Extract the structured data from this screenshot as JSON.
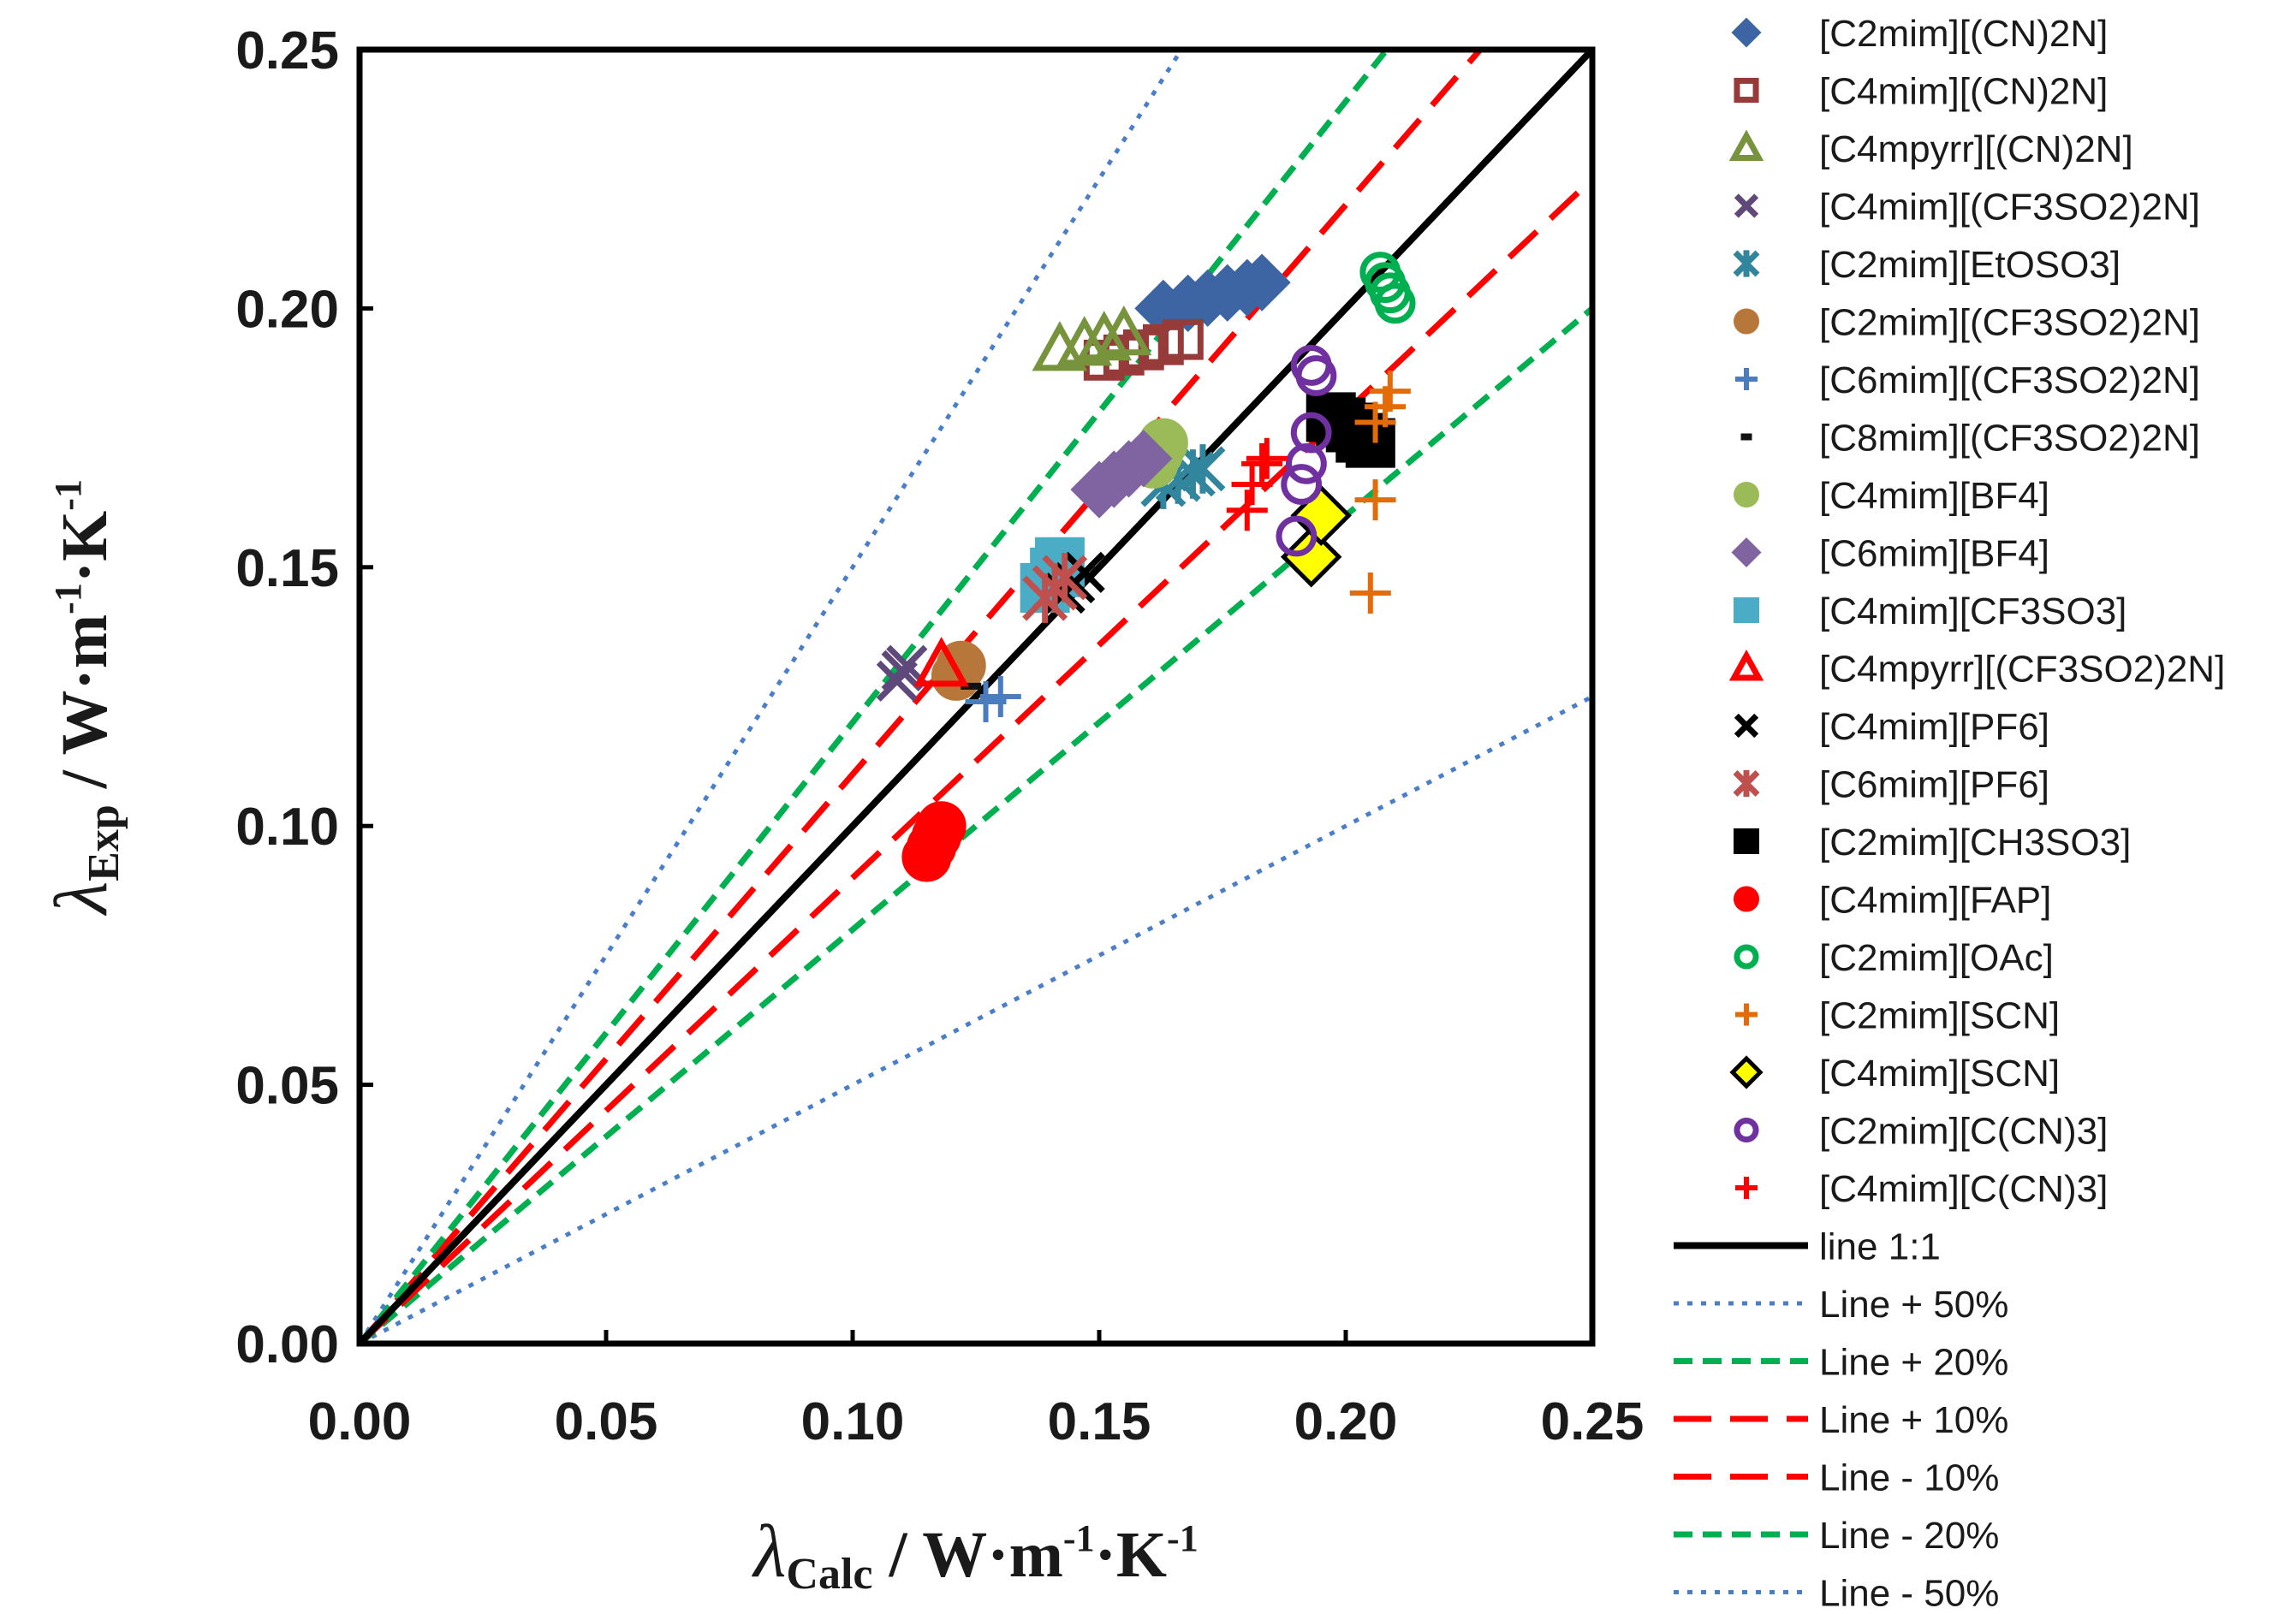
{
  "chart_data": {
    "type": "scatter",
    "title": "",
    "xlabel": {
      "symbol": "λ",
      "sub": "Calc",
      "unit": " / W·m",
      "exp1": "-1",
      "mid": "·K",
      "exp2": "-1"
    },
    "ylabel": {
      "symbol": "λ",
      "sub": "Exp",
      "unit": " / W·m",
      "exp1": "-1",
      "mid": "·K",
      "exp2": "-1"
    },
    "xlim": [
      0,
      0.25
    ],
    "ylim": [
      0,
      0.25
    ],
    "xticks": [
      "0.00",
      "0.05",
      "0.10",
      "0.15",
      "0.20",
      "0.25"
    ],
    "yticks": [
      "0.00",
      "0.05",
      "0.10",
      "0.15",
      "0.20",
      "0.25"
    ],
    "legend_position": "right",
    "series": [
      {
        "name": "[C2mim][(CN)2N]",
        "marker": "diamond",
        "fill": true,
        "color": "#3d64a3",
        "points": [
          [
            0.163,
            0.2
          ],
          [
            0.168,
            0.201
          ],
          [
            0.172,
            0.202
          ],
          [
            0.176,
            0.203
          ],
          [
            0.18,
            0.204
          ],
          [
            0.183,
            0.205
          ]
        ]
      },
      {
        "name": "[C4mim][(CN)2N]",
        "marker": "square",
        "fill": false,
        "color": "#973a3a",
        "points": [
          [
            0.151,
            0.19
          ],
          [
            0.155,
            0.191
          ],
          [
            0.159,
            0.192
          ],
          [
            0.163,
            0.193
          ],
          [
            0.167,
            0.194
          ]
        ]
      },
      {
        "name": "[C4mpyrr][(CN)2N]",
        "marker": "triangle",
        "fill": false,
        "color": "#77933c",
        "points": [
          [
            0.142,
            0.192
          ],
          [
            0.147,
            0.193
          ],
          [
            0.151,
            0.194
          ],
          [
            0.155,
            0.195
          ]
        ]
      },
      {
        "name": "[C4mim][(CF3SO2)2N]",
        "marker": "x",
        "fill": false,
        "color": "#5f497a",
        "points": [
          [
            0.109,
            0.128
          ],
          [
            0.11,
            0.13
          ],
          [
            0.111,
            0.131
          ]
        ]
      },
      {
        "name": "[C2mim][EtOSO3]",
        "marker": "star",
        "fill": false,
        "color": "#31859c",
        "points": [
          [
            0.163,
            0.166
          ],
          [
            0.166,
            0.167
          ],
          [
            0.169,
            0.168
          ],
          [
            0.171,
            0.169
          ]
        ]
      },
      {
        "name": "[C2mim][(CF3SO2)2N]",
        "marker": "circle",
        "fill": true,
        "color": "#b7763a",
        "points": [
          [
            0.121,
            0.129
          ],
          [
            0.122,
            0.131
          ]
        ]
      },
      {
        "name": "[C6mim][(CF3SO2)2N]",
        "marker": "plus",
        "fill": false,
        "color": "#4a7cc0",
        "points": [
          [
            0.127,
            0.124
          ],
          [
            0.13,
            0.125
          ]
        ]
      },
      {
        "name": "[C8mim][(CF3SO2)2N]",
        "marker": "dash",
        "fill": false,
        "color": "#111111",
        "points": [
          [
            0.124,
            0.127
          ]
        ]
      },
      {
        "name": "[C4mim][BF4]",
        "marker": "circle",
        "fill": true,
        "color": "#9bbb59",
        "points": [
          [
            0.161,
            0.17
          ],
          [
            0.162,
            0.172
          ],
          [
            0.163,
            0.174
          ]
        ]
      },
      {
        "name": "[C6mim][BF4]",
        "marker": "diamond",
        "fill": true,
        "color": "#8064a2",
        "points": [
          [
            0.15,
            0.165
          ],
          [
            0.153,
            0.167
          ],
          [
            0.156,
            0.169
          ],
          [
            0.159,
            0.171
          ]
        ]
      },
      {
        "name": "[C4mim][CF3SO3]",
        "marker": "square",
        "fill": true,
        "color": "#4bacc6",
        "points": [
          [
            0.139,
            0.146
          ],
          [
            0.141,
            0.149
          ],
          [
            0.142,
            0.151
          ]
        ]
      },
      {
        "name": "[C4mpyrr][(CF3SO2)2N]",
        "marker": "triangle",
        "fill": false,
        "color": "#ff0000",
        "points": [
          [
            0.118,
            0.131
          ]
        ]
      },
      {
        "name": "[C4mim][PF6]",
        "marker": "x",
        "fill": false,
        "color": "#000000",
        "points": [
          [
            0.143,
            0.145
          ],
          [
            0.145,
            0.147
          ],
          [
            0.147,
            0.149
          ]
        ]
      },
      {
        "name": "[C6mim][PF6]",
        "marker": "star",
        "fill": false,
        "color": "#c0504d",
        "points": [
          [
            0.139,
            0.144
          ],
          [
            0.141,
            0.146
          ],
          [
            0.143,
            0.148
          ]
        ]
      },
      {
        "name": "[C2mim][CH3SO3]",
        "marker": "square",
        "fill": true,
        "color": "#000000",
        "points": [
          [
            0.197,
            0.179
          ],
          [
            0.199,
            0.178
          ],
          [
            0.201,
            0.177
          ],
          [
            0.203,
            0.175
          ],
          [
            0.205,
            0.174
          ]
        ]
      },
      {
        "name": "[C4mim][FAP]",
        "marker": "circle",
        "fill": true,
        "color": "#ff0000",
        "points": [
          [
            0.115,
            0.094
          ],
          [
            0.116,
            0.096
          ],
          [
            0.117,
            0.098
          ],
          [
            0.118,
            0.1
          ]
        ]
      },
      {
        "name": "[C2mim][OAc]",
        "marker": "circle",
        "fill": false,
        "color": "#00b050",
        "points": [
          [
            0.207,
            0.207
          ],
          [
            0.208,
            0.205
          ],
          [
            0.209,
            0.203
          ],
          [
            0.21,
            0.201
          ]
        ]
      },
      {
        "name": "[C2mim][SCN]",
        "marker": "plus",
        "fill": false,
        "color": "#e36c09",
        "points": [
          [
            0.205,
            0.145
          ],
          [
            0.206,
            0.163
          ],
          [
            0.206,
            0.178
          ],
          [
            0.208,
            0.181
          ],
          [
            0.209,
            0.184
          ]
        ]
      },
      {
        "name": "[C4mim][SCN]",
        "marker": "diamond",
        "fill": true,
        "color": "#ffff00",
        "stroke": "#000000",
        "points": [
          [
            0.193,
            0.152
          ],
          [
            0.195,
            0.16
          ]
        ]
      },
      {
        "name": "[C2mim][C(CN)3]",
        "marker": "circle",
        "fill": false,
        "color": "#7030a0",
        "points": [
          [
            0.19,
            0.156
          ],
          [
            0.191,
            0.166
          ],
          [
            0.192,
            0.17
          ],
          [
            0.193,
            0.176
          ],
          [
            0.193,
            0.189
          ],
          [
            0.194,
            0.187
          ]
        ]
      },
      {
        "name": "[C4mim][C(CN)3]",
        "marker": "plus",
        "fill": false,
        "color": "#ff0000",
        "points": [
          [
            0.18,
            0.161
          ],
          [
            0.181,
            0.166
          ],
          [
            0.183,
            0.17
          ],
          [
            0.184,
            0.171
          ]
        ]
      }
    ],
    "reference_lines": [
      {
        "name": "line 1:1",
        "slope": 1.0,
        "color": "#000000",
        "style": "solid"
      },
      {
        "name": "Line + 50%",
        "slope": 1.5,
        "color": "#4a7ec9",
        "style": "dotted"
      },
      {
        "name": "Line + 20%",
        "slope": 1.2,
        "color": "#00b050",
        "style": "dashed"
      },
      {
        "name": "Line + 10%",
        "slope": 1.1,
        "color": "#ff0000",
        "style": "longdash"
      },
      {
        "name": "Line - 10%",
        "slope": 0.9,
        "color": "#ff0000",
        "style": "longdash"
      },
      {
        "name": "Line - 20%",
        "slope": 0.8,
        "color": "#00b050",
        "style": "dashed"
      },
      {
        "name": "Line - 50%",
        "slope": 0.5,
        "color": "#4a7ec9",
        "style": "dotted"
      }
    ]
  }
}
